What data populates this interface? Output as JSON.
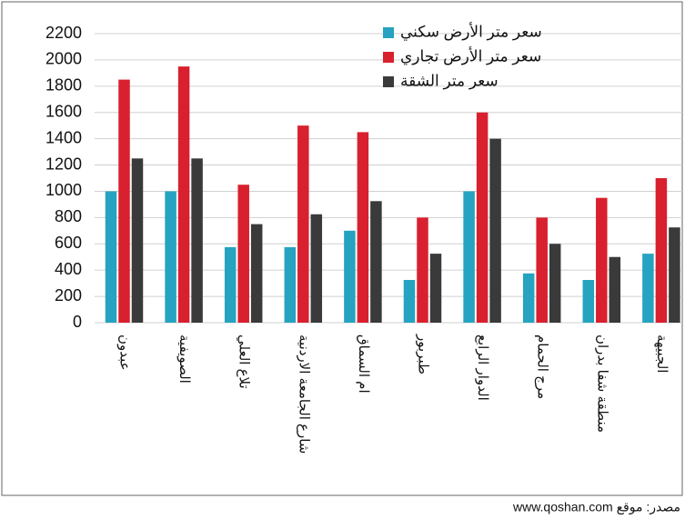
{
  "chart_data": {
    "type": "bar",
    "categories": [
      "عبدون",
      "الصويفية",
      "تلاع العلي",
      "شارع الجامعة الاردنية",
      "ام السماق",
      "طبربور",
      "الدوار الرابع",
      "مرج الحمام",
      "منطقة شفا بدران",
      "الجبيهة"
    ],
    "series": [
      {
        "name": "سعر متر الأرض سكني",
        "color": "#25a3c0",
        "values": [
          1000,
          1000,
          575,
          575,
          700,
          325,
          1000,
          375,
          325,
          525
        ]
      },
      {
        "name": "سعر متر الأرض تجاري",
        "color": "#d9202e",
        "values": [
          1850,
          1950,
          1050,
          1500,
          1450,
          800,
          1600,
          800,
          950,
          1100
        ]
      },
      {
        "name": "سعر متر الشقة",
        "color": "#3a3a3a",
        "values": [
          1250,
          1250,
          750,
          825,
          925,
          525,
          1400,
          600,
          500,
          725
        ]
      }
    ],
    "ylim": [
      0,
      2200
    ],
    "yticks": [
      0,
      200,
      400,
      600,
      800,
      1000,
      1200,
      1400,
      1600,
      1800,
      2000,
      2200
    ],
    "grid": true,
    "legend": "top-right",
    "source": "مصدر: موقع www.qoshan.com"
  }
}
